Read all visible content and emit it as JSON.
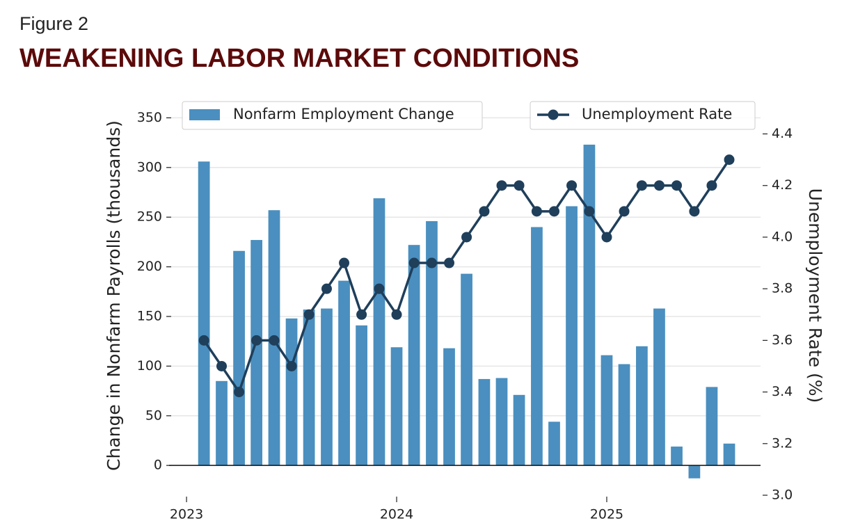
{
  "figure_label": "Figure 2",
  "chart_data": {
    "type": "bar_line",
    "title": "WEAKENING LABOR MARKET CONDITIONS",
    "ylabel": "Change in Nonfarm Payrolls (thousands)",
    "y2label": "Unemployment Rate (%)",
    "x": [
      2023.083,
      2023.167,
      2023.25,
      2023.333,
      2023.417,
      2023.5,
      2023.583,
      2023.667,
      2023.75,
      2023.833,
      2023.917,
      2024.0,
      2024.083,
      2024.167,
      2024.25,
      2024.333,
      2024.417,
      2024.5,
      2024.583,
      2024.667,
      2024.75,
      2024.833,
      2024.917,
      2025.0,
      2025.083,
      2025.167,
      2025.25,
      2025.333,
      2025.417,
      2025.5,
      2025.583
    ],
    "xlim": [
      2022.907,
      2025.732
    ],
    "xticks": [
      2023,
      2024,
      2025
    ],
    "series": [
      {
        "name": "Nonfarm Employment Change",
        "kind": "bar",
        "color": "#4a8fbf",
        "values": [
          306,
          85,
          216,
          227,
          257,
          148,
          157,
          158,
          186,
          141,
          269,
          119,
          222,
          246,
          118,
          193,
          87,
          88,
          71,
          240,
          44,
          261,
          323,
          111,
          102,
          120,
          158,
          19,
          -13,
          79,
          22
        ]
      },
      {
        "name": "Unemployment Rate",
        "kind": "line",
        "axis": "y2",
        "color": "#1f3f5b",
        "values": [
          3.6,
          3.5,
          3.4,
          3.6,
          3.6,
          3.5,
          3.7,
          3.8,
          3.9,
          3.7,
          3.8,
          3.7,
          3.9,
          3.9,
          3.9,
          4.0,
          4.1,
          4.2,
          4.2,
          4.1,
          4.1,
          4.2,
          4.1,
          4.0,
          4.1,
          4.2,
          4.2,
          4.2,
          4.1,
          4.2,
          4.3
        ]
      }
    ],
    "ylim": [
      -30,
      365
    ],
    "yticks": [
      0,
      50,
      100,
      150,
      200,
      250,
      300,
      350
    ],
    "y2lim": [
      3.0,
      4.52
    ],
    "y2ticks": [
      {
        "value": 3,
        "label": "3.0"
      },
      3.2,
      3.4,
      3.6,
      3.8,
      {
        "value": 4,
        "label": "4.0"
      },
      4.2,
      4.4
    ],
    "grid": true
  }
}
